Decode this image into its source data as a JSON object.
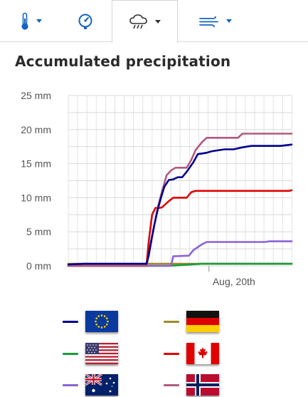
{
  "tabs": [
    {
      "name": "temperature",
      "icon": "thermometer-icon",
      "has_dropdown": true,
      "active": false
    },
    {
      "name": "pressure",
      "icon": "gauge-icon",
      "has_dropdown": false,
      "active": false
    },
    {
      "name": "precipitation",
      "icon": "rain-cloud-icon",
      "has_dropdown": true,
      "active": true
    },
    {
      "name": "wind",
      "icon": "wind-icon",
      "has_dropdown": true,
      "active": false
    }
  ],
  "colors": {
    "accent": "#1565c0",
    "grid": "#d7d7d7",
    "axis_text": "#555555"
  },
  "chart_data": {
    "type": "line",
    "title": "Accumulated precipitation",
    "xlabel": "",
    "ylabel": "",
    "y_unit": "mm",
    "ylim": [
      0,
      25
    ],
    "yticks": [
      0,
      5,
      10,
      15,
      20,
      25
    ],
    "ytick_labels": [
      "0 mm",
      "5 mm",
      "10 mm",
      "15 mm",
      "20 mm",
      "25 mm"
    ],
    "xlim": [
      0,
      1
    ],
    "xtick_positions": [
      0.63
    ],
    "xtick_labels": [
      "Aug, 20th"
    ],
    "grid": true,
    "series": [
      {
        "model": "eu",
        "color": "#00008b",
        "x": [
          0,
          0.07,
          0.35,
          0.36,
          0.37,
          0.385,
          0.4,
          0.415,
          0.43,
          0.45,
          0.47,
          0.49,
          0.51,
          0.53,
          0.545,
          0.56,
          0.58,
          0.6,
          0.62,
          0.64,
          0.66,
          0.7,
          0.74,
          0.78,
          0.82,
          0.86,
          0.95,
          1.0
        ],
        "y": [
          0.2,
          0.3,
          0.3,
          1.5,
          3.5,
          6.0,
          8.2,
          10.0,
          11.6,
          12.6,
          12.7,
          13.0,
          13.0,
          13.8,
          14.5,
          15.2,
          16.4,
          16.5,
          16.6,
          16.8,
          16.9,
          17.1,
          17.1,
          17.4,
          17.6,
          17.6,
          17.6,
          17.8
        ]
      },
      {
        "model": "de",
        "color": "#9e8a2a",
        "x": [
          0,
          0.6,
          1.0
        ],
        "y": [
          0.3,
          0.3,
          0.3
        ]
      },
      {
        "model": "us",
        "color": "#1a9a3a",
        "x": [
          0,
          0.45,
          0.6,
          0.7,
          1.0
        ],
        "y": [
          0,
          0,
          0.3,
          0.3,
          0.3
        ]
      },
      {
        "model": "ca",
        "color": "#e00000",
        "x": [
          0,
          0.35,
          0.36,
          0.375,
          0.39,
          0.41,
          0.42,
          0.45,
          0.47,
          0.5,
          0.53,
          0.55,
          0.57,
          0.65,
          0.7,
          0.8,
          0.9,
          0.99,
          1.0
        ],
        "y": [
          0,
          0,
          3.5,
          7.5,
          8.5,
          8.5,
          8.6,
          9.5,
          10.0,
          10.0,
          10.0,
          10.8,
          11.0,
          11.0,
          11.0,
          11.0,
          11.0,
          11.0,
          11.1
        ]
      },
      {
        "model": "au",
        "color": "#8b63d5",
        "x": [
          0,
          0.46,
          0.47,
          0.54,
          0.56,
          0.6,
          0.62,
          0.65,
          0.8,
          0.88,
          0.9,
          1.0
        ],
        "y": [
          0,
          0,
          1.4,
          1.5,
          2.3,
          3.2,
          3.5,
          3.5,
          3.5,
          3.5,
          3.6,
          3.6
        ]
      },
      {
        "model": "no",
        "color": "#b05a80",
        "x": [
          0,
          0.35,
          0.36,
          0.38,
          0.4,
          0.42,
          0.44,
          0.46,
          0.48,
          0.5,
          0.53,
          0.55,
          0.57,
          0.6,
          0.62,
          0.65,
          0.7,
          0.76,
          0.78,
          0.8,
          0.9,
          1.0
        ],
        "y": [
          0,
          0,
          1.5,
          5.0,
          8.5,
          11.0,
          13.3,
          14.0,
          14.4,
          14.4,
          14.4,
          15.5,
          17.0,
          18.2,
          18.8,
          18.8,
          18.8,
          18.8,
          19.4,
          19.4,
          19.4,
          19.4
        ]
      }
    ]
  },
  "legend": [
    {
      "model": "eu",
      "color": "#00008b",
      "flag": "eu-flag"
    },
    {
      "model": "de",
      "color": "#9e8a2a",
      "flag": "germany-flag"
    },
    {
      "model": "us",
      "color": "#1a9a3a",
      "flag": "usa-flag"
    },
    {
      "model": "ca",
      "color": "#e00000",
      "flag": "canada-flag"
    },
    {
      "model": "au",
      "color": "#8b63d5",
      "flag": "australia-flag"
    },
    {
      "model": "no",
      "color": "#b05a80",
      "flag": "norway-flag"
    }
  ]
}
